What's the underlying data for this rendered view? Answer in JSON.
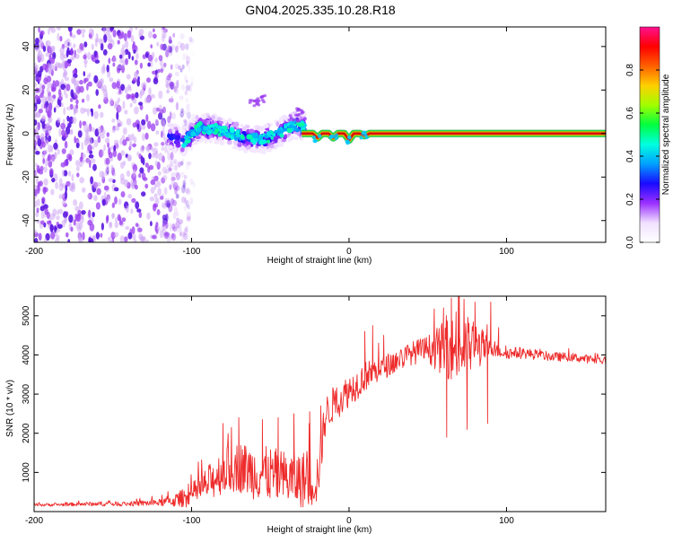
{
  "title": "GN04.2025.335.10.28.R18",
  "chart_data": [
    {
      "type": "heatmap",
      "name": "spectrogram",
      "xlabel": "Height of straight line (km)",
      "ylabel": "Frequency (Hz)",
      "xlim": [
        -200,
        163
      ],
      "ylim": [
        -50,
        49
      ],
      "x_ticks": [
        -200,
        -100,
        0,
        100
      ],
      "y_ticks": [
        -40,
        -20,
        0,
        20,
        40
      ],
      "colorbar": {
        "label": "Normalized spectral amplitude",
        "range": [
          0,
          1
        ],
        "ticks": [
          "0.0",
          "0.2",
          "0.4",
          "0.6",
          "0.8"
        ],
        "tick_values": [
          0,
          0.2,
          0.4,
          0.6,
          0.8
        ],
        "colors": [
          "#ffffff",
          "#f0e0ff",
          "#9b30ff",
          "#1a0aff",
          "#00a0ff",
          "#00ffe0",
          "#00ff40",
          "#a0ff00",
          "#ffd000",
          "#ff6000",
          "#ff0000",
          "#ff1090"
        ]
      },
      "noise_region_x": [
        -200,
        -105
      ],
      "signal_region_x": [
        -115,
        -28
      ],
      "signal_freq_track": [
        [
          -115,
          -1
        ],
        [
          -105,
          -4
        ],
        [
          -95,
          3
        ],
        [
          -85,
          2
        ],
        [
          -75,
          0
        ],
        [
          -65,
          -2
        ],
        [
          -55,
          -3
        ],
        [
          -45,
          0
        ],
        [
          -35,
          4
        ],
        [
          -30,
          3
        ]
      ],
      "tone": {
        "x_start": -30,
        "x_end": 163,
        "freq": 0,
        "amplitude": 1.0
      },
      "tone_dips": [
        [
          -20,
          -2
        ],
        [
          -10,
          -2
        ],
        [
          0,
          -3
        ],
        [
          10,
          -1
        ]
      ],
      "side_bursts": [
        [
          -60,
          14
        ],
        [
          -55,
          16
        ],
        [
          -35,
          7
        ],
        [
          -30,
          10
        ]
      ]
    },
    {
      "type": "line",
      "name": "snr",
      "xlabel": "Height of straight line (km)",
      "ylabel": "SNR (10 * v/v)",
      "xlim": [
        -200,
        163
      ],
      "ylim": [
        0,
        5500
      ],
      "x_ticks": [
        -200,
        -100,
        0,
        100
      ],
      "y_ticks": [
        1000,
        2000,
        3000,
        4000,
        5000
      ],
      "color": "#ee2b2b",
      "series": [
        {
          "name": "SNR",
          "x": [
            -200,
            -180,
            -160,
            -140,
            -120,
            -110,
            -100,
            -90,
            -80,
            -70,
            -60,
            -50,
            -40,
            -30,
            -25,
            -20,
            -15,
            -10,
            -5,
            0,
            5,
            10,
            15,
            20,
            25,
            30,
            40,
            50,
            60,
            70,
            80,
            90,
            100,
            110,
            120,
            130,
            140,
            150,
            163
          ],
          "y": [
            170,
            180,
            200,
            200,
            230,
            290,
            420,
            700,
            1050,
            1150,
            1000,
            950,
            850,
            800,
            820,
            850,
            2450,
            2750,
            2900,
            3100,
            3250,
            3450,
            3550,
            3650,
            3750,
            3850,
            4050,
            4150,
            4150,
            4150,
            4250,
            4150,
            4050,
            4050,
            4000,
            3950,
            3950,
            3900,
            3850
          ],
          "noise": [
            40,
            40,
            60,
            60,
            90,
            180,
            300,
            450,
            600,
            650,
            700,
            700,
            700,
            750,
            750,
            700,
            500,
            450,
            450,
            420,
            400,
            380,
            350,
            330,
            300,
            300,
            300,
            350,
            700,
            900,
            700,
            200,
            150,
            150,
            120,
            120,
            110,
            110,
            100
          ]
        }
      ],
      "spikes": [
        [
          -80,
          2250
        ],
        [
          -70,
          2400
        ],
        [
          -55,
          2350
        ],
        [
          -45,
          2400
        ],
        [
          -35,
          2500
        ],
        [
          -25,
          2550
        ],
        [
          -18,
          2700
        ],
        [
          10,
          4600
        ],
        [
          15,
          4750
        ],
        [
          22,
          4500
        ],
        [
          60,
          5200
        ],
        [
          62,
          1900
        ],
        [
          65,
          5450
        ],
        [
          68,
          5100
        ],
        [
          70,
          5500
        ],
        [
          75,
          2100
        ],
        [
          80,
          5350
        ],
        [
          88,
          2250
        ],
        [
          90,
          5350
        ],
        [
          95,
          4700
        ]
      ]
    }
  ]
}
